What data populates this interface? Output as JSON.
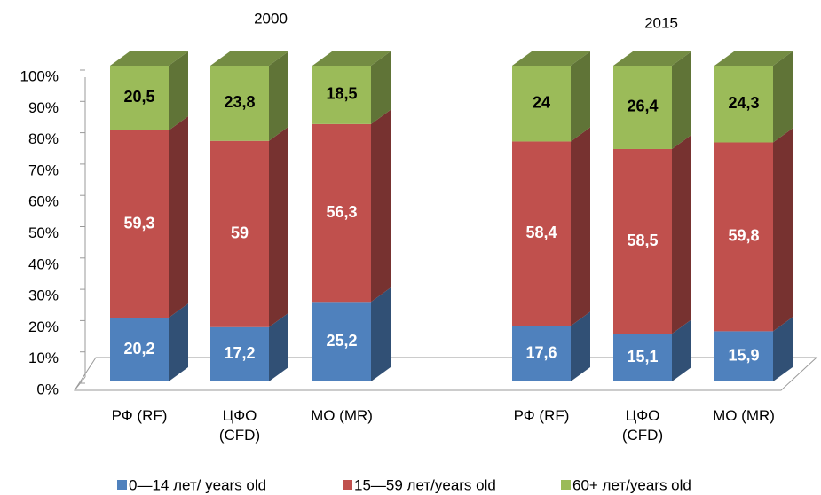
{
  "chart_data": {
    "type": "bar",
    "stacked": true,
    "groups": [
      "2000",
      "2015"
    ],
    "categories": [
      "РФ (RF)",
      "ЦФО\n(CFD)",
      "МО (MR)",
      "РФ (RF)",
      "ЦФО\n(CFD)",
      "МО (MR)"
    ],
    "series": [
      {
        "name": "0—14 лет/ years old",
        "color": "#4f81bd",
        "values": [
          20.2,
          17.2,
          25.2,
          17.6,
          15.1,
          15.9
        ],
        "value_labels": [
          "20,2",
          "17,2",
          "25,2",
          "17,6",
          "15,1",
          "15,9"
        ]
      },
      {
        "name": "15—59 лет/years old",
        "color": "#c0504d",
        "values": [
          59.3,
          59,
          56.3,
          58.4,
          58.5,
          59.8
        ],
        "value_labels": [
          "59,3",
          "59",
          "56,3",
          "58,4",
          "58,5",
          "59,8"
        ]
      },
      {
        "name": "60+ лет/years old",
        "color": "#9bbb59",
        "values": [
          20.5,
          23.8,
          18.5,
          24,
          26.4,
          24.3
        ],
        "value_labels": [
          "20,5",
          "23,8",
          "18,5",
          "24",
          "26,4",
          "24,3"
        ]
      }
    ],
    "ylim": [
      0,
      100
    ],
    "yticks": [
      {
        "value": 0,
        "label": "0%"
      },
      {
        "value": 10,
        "label": "10%"
      },
      {
        "value": 20,
        "label": "20%"
      },
      {
        "value": 30,
        "label": "30%"
      },
      {
        "value": 40,
        "label": "40%"
      },
      {
        "value": 50,
        "label": "50%"
      },
      {
        "value": 60,
        "label": "60%"
      },
      {
        "value": 70,
        "label": "70%"
      },
      {
        "value": 80,
        "label": "80%"
      },
      {
        "value": 90,
        "label": "90%"
      },
      {
        "value": 100,
        "label": "100%"
      }
    ],
    "legend": "bottom"
  }
}
